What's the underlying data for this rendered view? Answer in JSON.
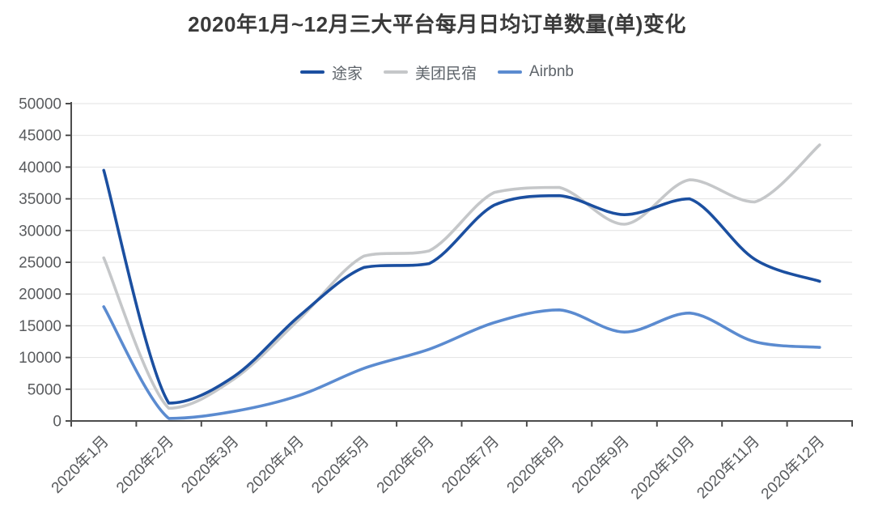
{
  "chart_data": {
    "type": "line",
    "title": "2020年1月~12月三大平台每月日均订单数量(单)变化",
    "categories": [
      "2020年1月",
      "2020年2月",
      "2020年3月",
      "2020年4月",
      "2020年5月",
      "2020年6月",
      "2020年7月",
      "2020年8月",
      "2020年9月",
      "2020年10月",
      "2020年11月",
      "2020年12月"
    ],
    "series": [
      {
        "name": "途家",
        "color": "#1b4fa0",
        "values": [
          39500,
          2800,
          7000,
          16500,
          24200,
          24800,
          34000,
          35500,
          32500,
          35000,
          25500,
          22000
        ]
      },
      {
        "name": "美团民宿",
        "color": "#c5c7c9",
        "values": [
          25700,
          2000,
          6600,
          16000,
          26000,
          26800,
          36000,
          36800,
          31000,
          38000,
          34500,
          43500
        ]
      },
      {
        "name": "Airbnb",
        "color": "#5b8bd0",
        "values": [
          18000,
          400,
          1500,
          4000,
          8300,
          11300,
          15500,
          17500,
          14000,
          17000,
          12500,
          11600
        ]
      }
    ],
    "ylim": [
      0,
      50000
    ],
    "y_tick_step": 5000,
    "y_tick_labels": [
      "0",
      "5000",
      "10000",
      "15000",
      "20000",
      "25000",
      "30000",
      "35000",
      "40000",
      "45000",
      "50000"
    ],
    "xlabel": "",
    "ylabel": "",
    "smooth": true,
    "grid": "horizontal-lines-on",
    "legend_position": "top",
    "x_label_rotation_deg": 45
  }
}
